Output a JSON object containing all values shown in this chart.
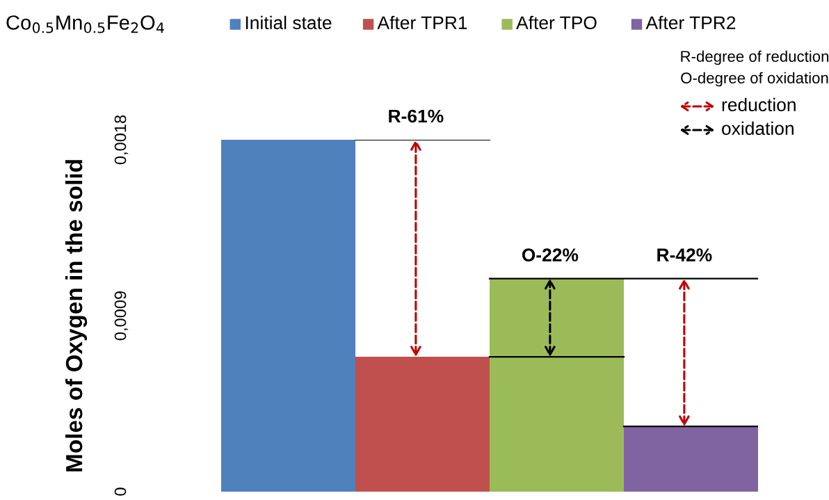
{
  "chart_data": {
    "type": "bar",
    "title": "Co$_{0.5}$Mn$_{0.5}$Fe$_{2}$O$_{4}$",
    "ylabel": "Moles of Oxygen in the solid",
    "categories": [
      "Initial state",
      "After TPR1",
      "After TPO",
      "After TPR2"
    ],
    "values": [
      0.0018,
      0.00069,
      0.00109,
      0.000334
    ],
    "colors": [
      "#4f81bd",
      "#c0504d",
      "#9bbb59",
      "#8064a2"
    ],
    "ylim": [
      0,
      0.0018
    ],
    "yticks": [
      {
        "value": 0,
        "label": "0"
      },
      {
        "value": 0.0009,
        "label": "0,0009"
      },
      {
        "value": 0.0018,
        "label": "0,0018"
      }
    ],
    "grid": false,
    "ref_lines": [
      {
        "axis": "y",
        "value": 0.0018,
        "color": "#000000"
      },
      {
        "axis": "y",
        "value": 0.00109,
        "color": "#000000"
      },
      {
        "axis": "y",
        "value": 0.00069,
        "color": "#000000"
      },
      {
        "axis": "y",
        "value": 0.000334,
        "color": "#000000"
      }
    ],
    "annotations": [
      {
        "text": "R-61%",
        "y": 0.0018
      },
      {
        "text": "O-22%",
        "y": 0.00109
      },
      {
        "text": "R-42%",
        "y": 0.00109
      },
      "R-degree of reduction",
      "O-degree of oxidation",
      "reduction",
      "oxidation"
    ]
  }
}
